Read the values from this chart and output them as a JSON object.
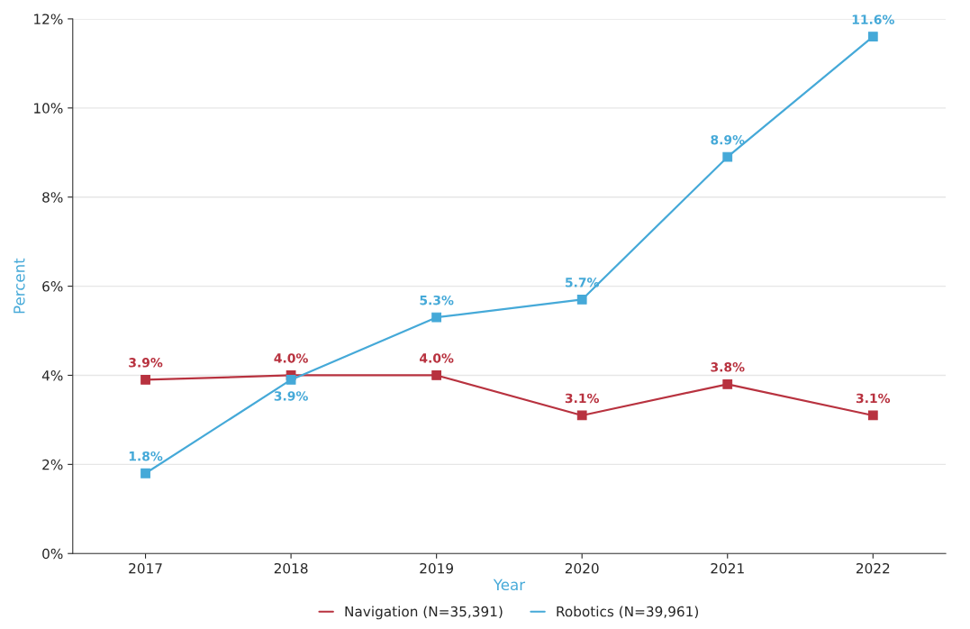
{
  "chart_data": {
    "type": "line",
    "xlabel": "Year",
    "ylabel": "Percent",
    "categories": [
      "2017",
      "2018",
      "2019",
      "2020",
      "2021",
      "2022"
    ],
    "series": [
      {
        "name": "Navigation (N=35,391)",
        "color": "#b8323f",
        "values": [
          3.9,
          4.0,
          4.0,
          3.1,
          3.8,
          3.1
        ],
        "value_labels": [
          "3.9%",
          "4.0%",
          "4.0%",
          "3.1%",
          "3.8%",
          "3.1%"
        ]
      },
      {
        "name": "Robotics (N=39,961)",
        "color": "#45a9d8",
        "values": [
          1.8,
          3.9,
          5.3,
          5.7,
          8.9,
          11.6
        ],
        "value_labels": [
          "1.8%",
          "3.9%",
          "5.3%",
          "5.7%",
          "8.9%",
          "11.6%"
        ]
      }
    ],
    "ylim": [
      0,
      12
    ],
    "yticks": [
      {
        "value": 0,
        "label": "0%"
      },
      {
        "value": 2,
        "label": "2%"
      },
      {
        "value": 4,
        "label": "4%"
      },
      {
        "value": 6,
        "label": "6%"
      },
      {
        "value": 8,
        "label": "8%"
      },
      {
        "value": 10,
        "label": "10%"
      },
      {
        "value": 12,
        "label": "12%"
      }
    ],
    "grid": "y",
    "legend": "bottom",
    "marker": "square",
    "line_style": "solid"
  }
}
